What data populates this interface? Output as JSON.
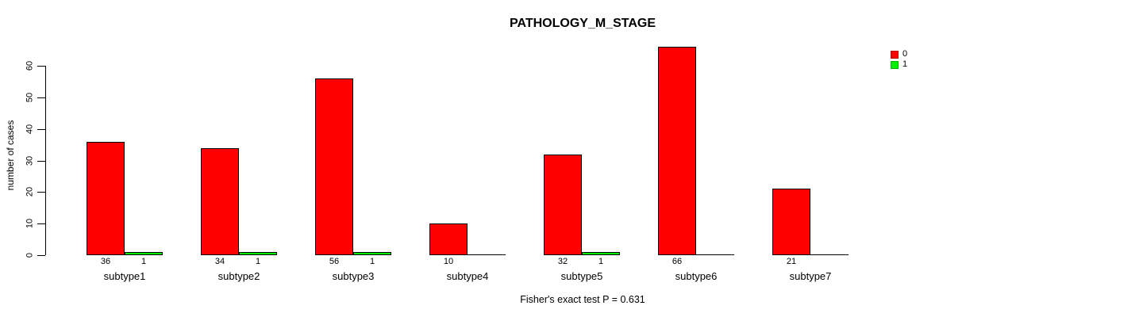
{
  "title": "PATHOLOGY_M_STAGE",
  "caption": "Fisher's exact test P = 0.631",
  "legend": {
    "position": "top-right-outside",
    "items": [
      {
        "label": "0",
        "color": "#ff0000"
      },
      {
        "label": "1",
        "color": "#00ee00"
      }
    ]
  },
  "chart_data": {
    "type": "bar",
    "title": "PATHOLOGY_M_STAGE",
    "xlabel": "",
    "ylabel": "number of cases",
    "categories": [
      "subtype1",
      "subtype2",
      "subtype3",
      "subtype4",
      "subtype5",
      "subtype6",
      "subtype7"
    ],
    "series": [
      {
        "name": "0",
        "color": "#ff0000",
        "values": [
          36,
          34,
          56,
          10,
          32,
          66,
          21
        ]
      },
      {
        "name": "1",
        "color": "#00ee00",
        "values": [
          1,
          1,
          1,
          0,
          1,
          0,
          0
        ]
      }
    ],
    "yticks": [
      0,
      10,
      20,
      30,
      40,
      50,
      60
    ],
    "ylim": [
      0,
      66
    ],
    "grid": false,
    "bar_borders": "#000000",
    "value_labels_below_bars": true,
    "zero_values_drawn_as_baseline_segment": true,
    "annotation": "Fisher's exact test P = 0.631"
  },
  "colors": {
    "background": "#ffffff",
    "axis": "#000000",
    "text": "#000000"
  }
}
